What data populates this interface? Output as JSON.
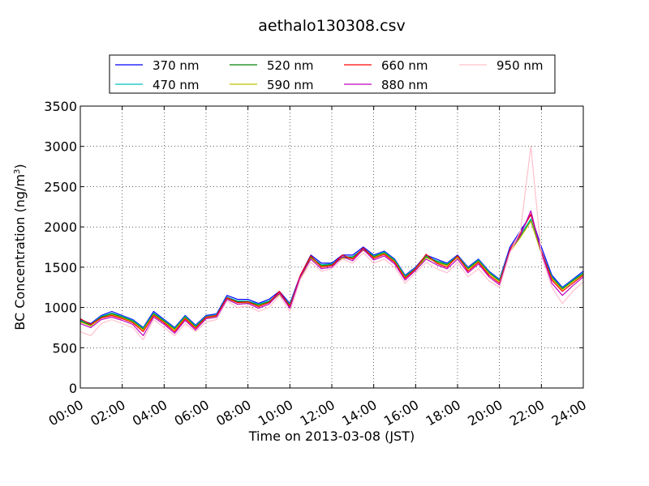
{
  "chart_data": {
    "type": "line",
    "title": "aethalo130308.csv",
    "xlabel": "Time on 2013-03-08 (JST)",
    "ylabel_text": "BC Concentration (ng/m",
    "ylabel_sup": "3",
    "ylabel_close": ")",
    "xlim_hours": [
      0,
      24
    ],
    "ylim": [
      0,
      3500
    ],
    "grid": true,
    "legend_position": "top",
    "x_ticks": [
      "00:00",
      "02:00",
      "04:00",
      "06:00",
      "08:00",
      "10:00",
      "12:00",
      "14:00",
      "16:00",
      "18:00",
      "20:00",
      "22:00",
      "24:00"
    ],
    "y_ticks": [
      "0",
      "500",
      "1000",
      "1500",
      "2000",
      "2500",
      "3000",
      "3500"
    ],
    "x_hours": [
      0,
      0.5,
      1,
      1.5,
      2,
      2.5,
      3,
      3.5,
      4,
      4.5,
      5,
      5.5,
      6,
      6.5,
      7,
      7.5,
      8,
      8.5,
      9,
      9.5,
      10,
      10.5,
      11,
      11.5,
      12,
      12.5,
      13,
      13.5,
      14,
      14.5,
      15,
      15.5,
      16,
      16.5,
      17,
      17.5,
      18,
      18.5,
      19,
      19.5,
      20,
      20.5,
      21,
      21.5,
      22,
      22.5,
      23,
      23.5,
      24
    ],
    "series": [
      {
        "name": "370 nm",
        "color": "#0000ff",
        "values": [
          850,
          800,
          900,
          950,
          900,
          850,
          750,
          950,
          850,
          750,
          900,
          780,
          900,
          920,
          1150,
          1100,
          1100,
          1050,
          1100,
          1200,
          1050,
          1400,
          1650,
          1550,
          1550,
          1650,
          1650,
          1750,
          1650,
          1700,
          1600,
          1400,
          1500,
          1650,
          1600,
          1550,
          1650,
          1500,
          1600,
          1450,
          1350,
          1750,
          1950,
          2150,
          1750,
          1400,
          1250,
          1350,
          1450
        ]
      },
      {
        "name": "470 nm",
        "color": "#00bfbf",
        "values": [
          840,
          790,
          890,
          930,
          890,
          840,
          740,
          930,
          840,
          740,
          890,
          770,
          890,
          910,
          1130,
          1080,
          1080,
          1040,
          1080,
          1180,
          1040,
          1380,
          1630,
          1530,
          1540,
          1630,
          1630,
          1730,
          1640,
          1690,
          1590,
          1390,
          1490,
          1640,
          1580,
          1540,
          1640,
          1490,
          1590,
          1440,
          1340,
          1720,
          1900,
          2100,
          1700,
          1380,
          1240,
          1340,
          1430
        ]
      },
      {
        "name": "520 nm",
        "color": "#008000",
        "values": [
          830,
          780,
          880,
          920,
          880,
          830,
          730,
          920,
          830,
          730,
          880,
          760,
          880,
          900,
          1120,
          1070,
          1070,
          1030,
          1070,
          1170,
          1030,
          1370,
          1620,
          1520,
          1530,
          1620,
          1620,
          1720,
          1630,
          1680,
          1580,
          1380,
          1480,
          1630,
          1570,
          1530,
          1630,
          1480,
          1580,
          1430,
          1330,
          1700,
          1880,
          2080,
          1680,
          1370,
          1230,
          1330,
          1420
        ]
      },
      {
        "name": "590 nm",
        "color": "#bfbf00",
        "values": [
          820,
          770,
          870,
          910,
          870,
          820,
          720,
          910,
          820,
          720,
          870,
          750,
          870,
          890,
          1110,
          1060,
          1060,
          1020,
          1060,
          1160,
          1020,
          1360,
          1610,
          1510,
          1520,
          1610,
          1610,
          1710,
          1620,
          1670,
          1570,
          1370,
          1470,
          1620,
          1560,
          1520,
          1620,
          1470,
          1570,
          1420,
          1320,
          1690,
          1870,
          2070,
          1670,
          1360,
          1220,
          1320,
          1410
        ]
      },
      {
        "name": "660 nm",
        "color": "#ff0000",
        "values": [
          860,
          790,
          870,
          900,
          860,
          810,
          700,
          900,
          810,
          700,
          860,
          740,
          880,
          900,
          1120,
          1060,
          1070,
          1010,
          1060,
          1200,
          1010,
          1400,
          1640,
          1500,
          1520,
          1650,
          1600,
          1740,
          1610,
          1660,
          1560,
          1360,
          1480,
          1660,
          1550,
          1500,
          1640,
          1450,
          1560,
          1400,
          1300,
          1720,
          1920,
          2160,
          1700,
          1340,
          1200,
          1300,
          1400
        ]
      },
      {
        "name": "880 nm",
        "color": "#bf00bf",
        "values": [
          800,
          750,
          850,
          880,
          840,
          790,
          650,
          880,
          790,
          680,
          840,
          720,
          860,
          880,
          1100,
          1040,
          1050,
          990,
          1040,
          1180,
          990,
          1380,
          1600,
          1480,
          1500,
          1630,
          1580,
          1720,
          1590,
          1640,
          1540,
          1340,
          1460,
          1600,
          1530,
          1480,
          1600,
          1430,
          1540,
          1380,
          1280,
          1700,
          1900,
          2200,
          1680,
          1300,
          1150,
          1270,
          1380
        ]
      },
      {
        "name": "950 nm",
        "color": "#ffc0cb",
        "values": [
          700,
          650,
          800,
          850,
          800,
          750,
          600,
          850,
          750,
          650,
          800,
          700,
          820,
          850,
          1080,
          1000,
          1020,
          950,
          1000,
          1150,
          950,
          1350,
          1560,
          1450,
          1480,
          1600,
          1550,
          1680,
          1550,
          1600,
          1500,
          1300,
          1430,
          1560,
          1480,
          1430,
          1560,
          1380,
          1480,
          1330,
          1250,
          1680,
          1950,
          3000,
          1650,
          1250,
          1050,
          1200,
          1320
        ]
      }
    ]
  }
}
